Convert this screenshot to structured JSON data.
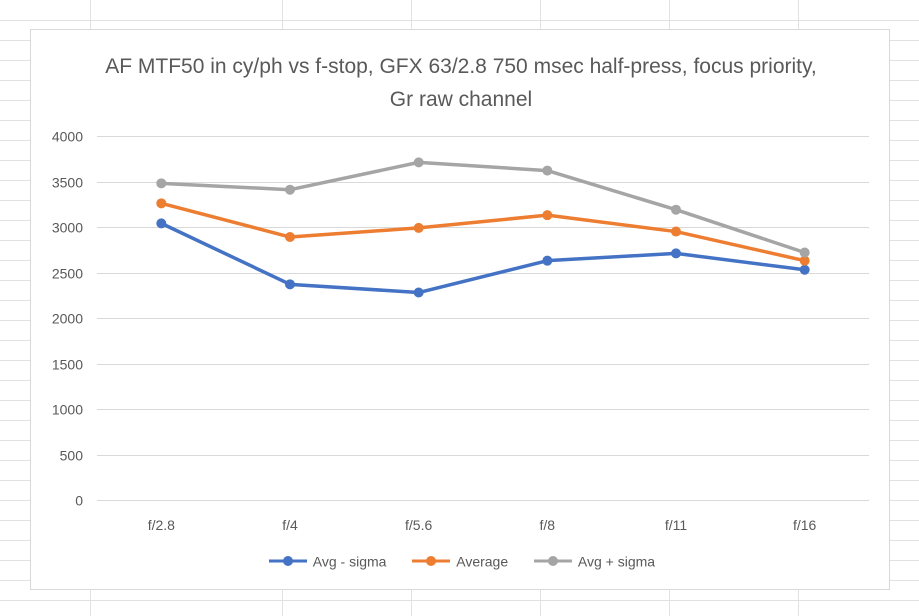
{
  "chart_data": {
    "type": "line",
    "title": "AF MTF50 in cy/ph vs f-stop, GFX 63/2.8 750 msec half-press, focus priority, Gr raw channel",
    "xlabel": "",
    "ylabel": "",
    "categories": [
      "f/2.8",
      "f/4",
      "f/5.6",
      "f/8",
      "f/11",
      "f/16"
    ],
    "ylim": [
      0,
      4000
    ],
    "yticks": [
      0,
      500,
      1000,
      1500,
      2000,
      2500,
      3000,
      3500,
      4000
    ],
    "grid": true,
    "legend_position": "bottom",
    "series": [
      {
        "name": "Avg - sigma",
        "color": "#4472C4",
        "values": [
          3040,
          2370,
          2280,
          2630,
          2710,
          2530
        ]
      },
      {
        "name": "Average",
        "color": "#ED7D31",
        "values": [
          3260,
          2890,
          2990,
          3130,
          2950,
          2630
        ]
      },
      {
        "name": "Avg + sigma",
        "color": "#A5A5A5",
        "values": [
          3480,
          3410,
          3710,
          3620,
          3190,
          2720
        ]
      }
    ]
  }
}
